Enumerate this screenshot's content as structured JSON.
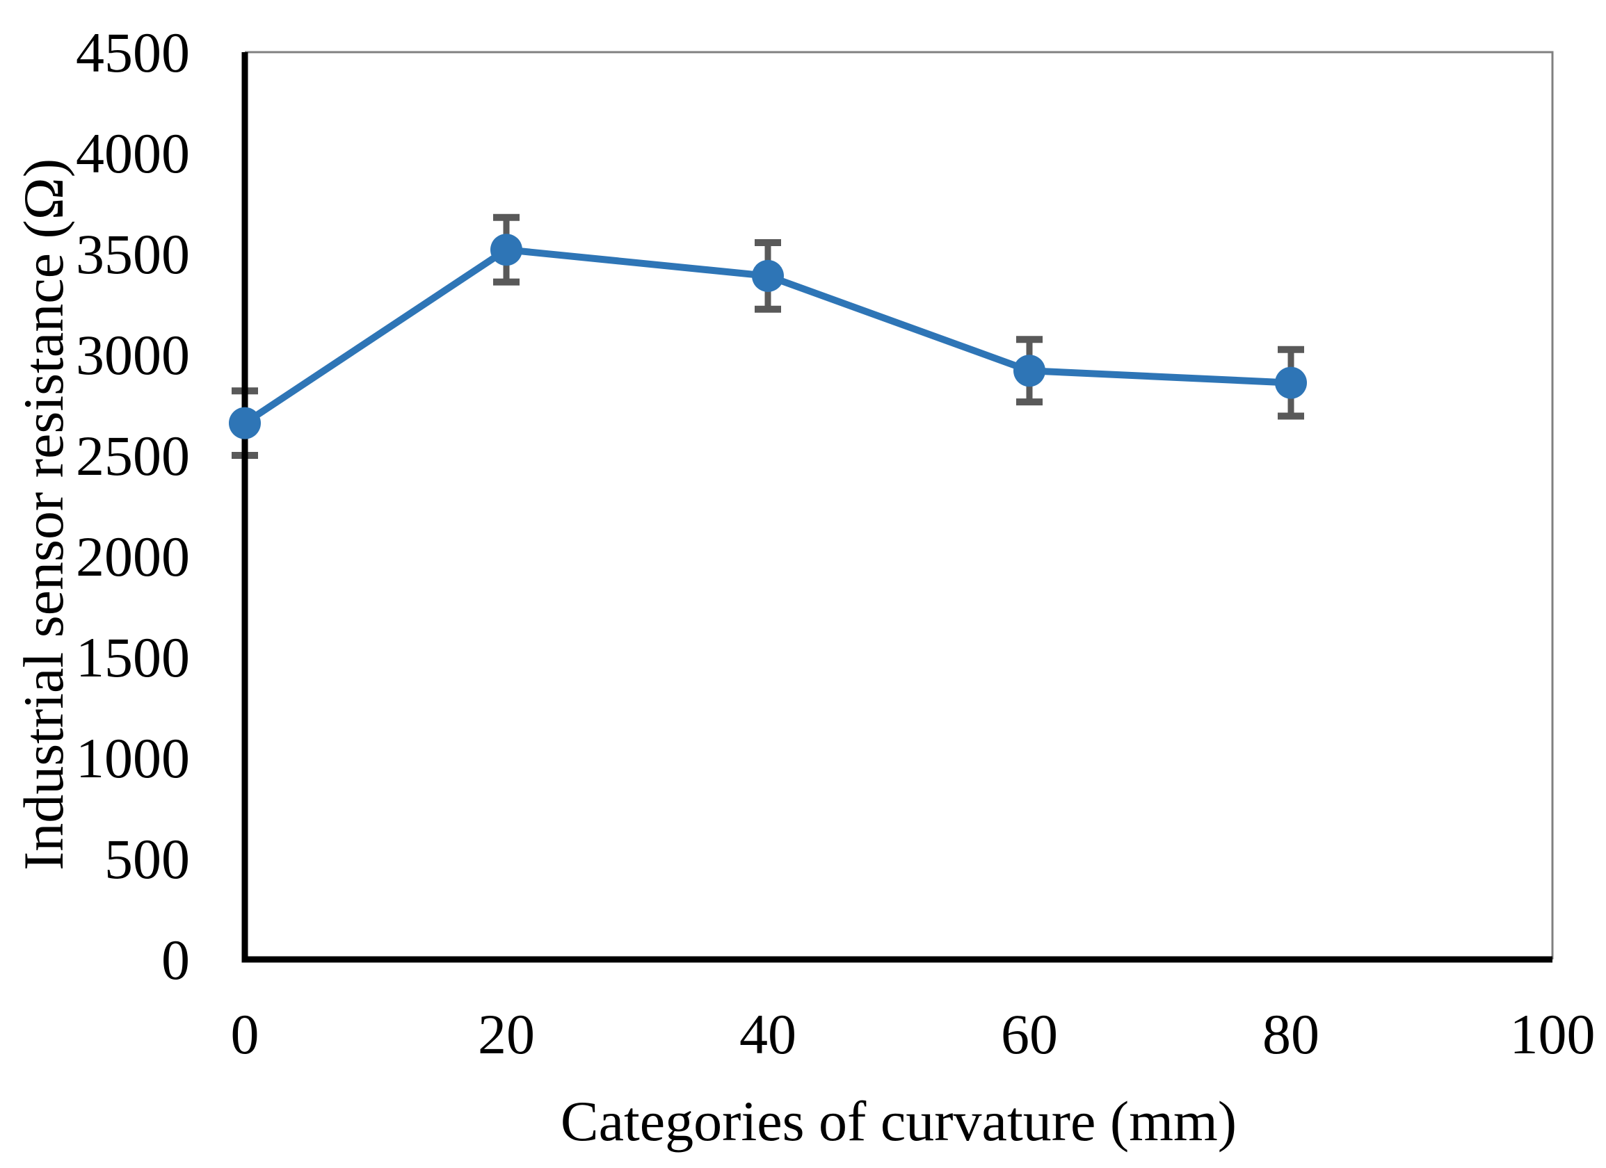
{
  "chart_data": {
    "type": "line",
    "title": "",
    "xlabel": "Categories of curvature (mm)",
    "ylabel": "Industrial sensor resistance (Ω)",
    "x": [
      0,
      20,
      40,
      60,
      80
    ],
    "series": [
      {
        "name": "Industrial sensor resistance",
        "values": [
          2660,
          3520,
          3390,
          2920,
          2860
        ],
        "error_plus": [
          160,
          160,
          165,
          155,
          165
        ],
        "error_minus": [
          160,
          160,
          165,
          155,
          165
        ]
      }
    ],
    "xlim": [
      0,
      100
    ],
    "ylim": [
      0,
      4500
    ],
    "x_ticks": [
      0,
      20,
      40,
      60,
      80,
      100
    ],
    "y_ticks": [
      0,
      500,
      1000,
      1500,
      2000,
      2500,
      3000,
      3500,
      4000,
      4500
    ],
    "grid": false,
    "legend": "none",
    "marker": "circle",
    "colors": {
      "line": "#2E75B6",
      "marker": "#2E75B6",
      "error_bar": "#595959",
      "axis": "#000000",
      "plot_border": "#808080"
    }
  }
}
